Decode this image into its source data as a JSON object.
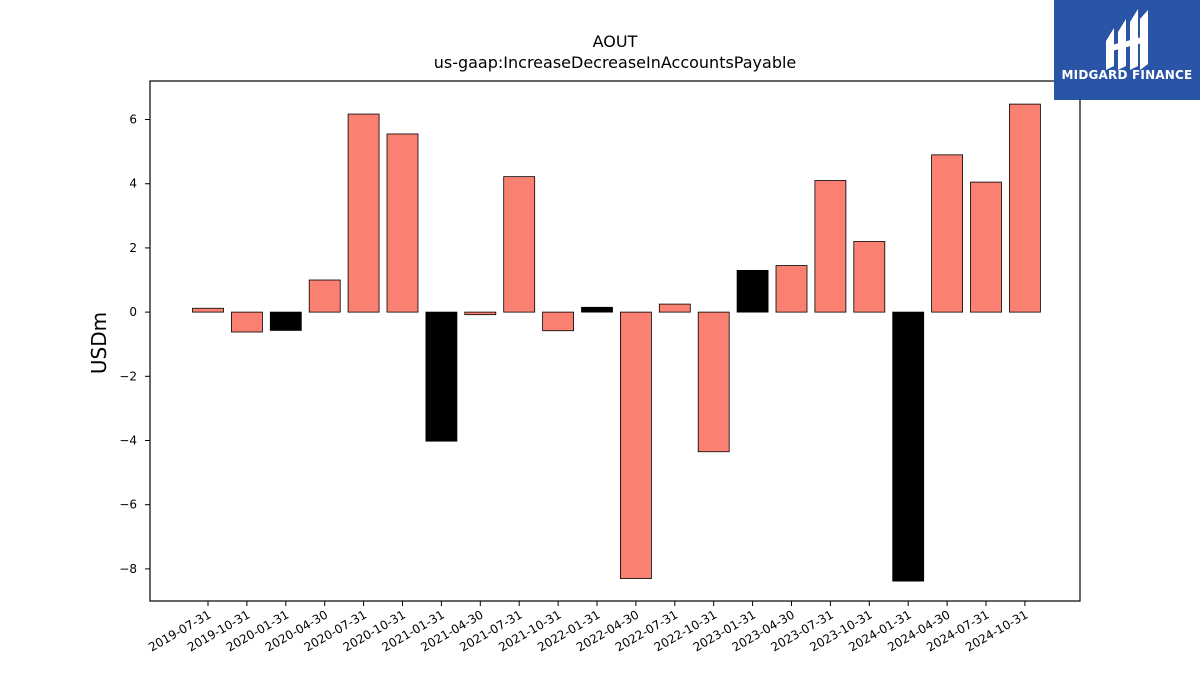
{
  "logo": {
    "text": "MIDGARD FINANCE",
    "bg_color": "#2a54a5"
  },
  "chart_data": {
    "type": "bar",
    "title": "AOUT",
    "subtitle": "us-gaap:IncreaseDecreaseInAccountsPayable",
    "xlabel": "",
    "ylabel": "USDm",
    "ylim": [
      -9.0,
      7.2
    ],
    "yticks": [
      6,
      4,
      2,
      0,
      -2,
      -4,
      -6,
      -8
    ],
    "ytick_labels": [
      "6",
      "4",
      "2",
      "0",
      "−2",
      "−4",
      "−6",
      "−8"
    ],
    "categories": [
      "2019-07-31",
      "2019-10-31",
      "2020-01-31",
      "2020-04-30",
      "2020-07-31",
      "2020-10-31",
      "2021-01-31",
      "2021-04-30",
      "2021-07-31",
      "2021-10-31",
      "2022-01-31",
      "2022-04-30",
      "2022-07-31",
      "2022-10-31",
      "2023-01-31",
      "2023-04-30",
      "2023-07-31",
      "2023-10-31",
      "2024-01-31",
      "2024-04-30",
      "2024-07-31",
      "2024-10-31"
    ],
    "values": [
      0.12,
      -0.62,
      -0.57,
      1.0,
      6.17,
      5.55,
      -4.02,
      -0.08,
      4.22,
      -0.58,
      0.15,
      -8.3,
      0.25,
      -4.35,
      1.3,
      1.45,
      4.1,
      2.2,
      -8.38,
      4.9,
      4.05,
      6.48
    ],
    "bar_colors": [
      "salmon",
      "salmon",
      "black",
      "salmon",
      "salmon",
      "salmon",
      "black",
      "salmon",
      "salmon",
      "salmon",
      "black",
      "salmon",
      "salmon",
      "salmon",
      "black",
      "salmon",
      "salmon",
      "salmon",
      "black",
      "salmon",
      "salmon",
      "salmon"
    ],
    "palette": {
      "salmon": "#fa8072",
      "black": "#000000",
      "edge": "#000000"
    },
    "grid": false,
    "legend": "none"
  }
}
